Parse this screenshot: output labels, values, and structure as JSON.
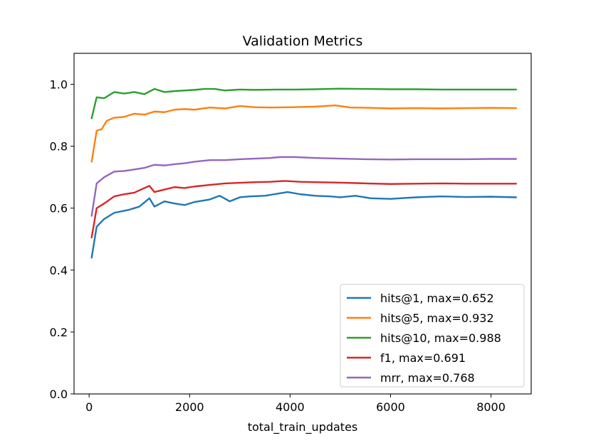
{
  "chart_data": {
    "type": "line",
    "title": "Validation Metrics",
    "xlabel": "total_train_updates",
    "ylabel": "",
    "xlim": [
      -300,
      8800
    ],
    "ylim": [
      0.0,
      1.1
    ],
    "xticks": [
      0,
      2000,
      4000,
      6000,
      8000
    ],
    "yticks": [
      0.0,
      0.2,
      0.4,
      0.6,
      0.8,
      1.0
    ],
    "xtick_labels": [
      "0",
      "2000",
      "4000",
      "6000",
      "8000"
    ],
    "ytick_labels": [
      "0.0",
      "0.2",
      "0.4",
      "0.6",
      "0.8",
      "1.0"
    ],
    "grid": false,
    "legend_position": "lower-right",
    "series": [
      {
        "name": "hits@1, max=0.652",
        "color": "#1f77b4",
        "x": [
          50,
          150,
          300,
          500,
          800,
          1000,
          1200,
          1300,
          1500,
          1700,
          1900,
          2100,
          2400,
          2600,
          2800,
          3000,
          3200,
          3500,
          3800,
          3950,
          4200,
          4500,
          4800,
          5000,
          5300,
          5600,
          6000,
          6500,
          7000,
          7500,
          8000,
          8500
        ],
        "y": [
          0.44,
          0.54,
          0.565,
          0.585,
          0.595,
          0.605,
          0.632,
          0.605,
          0.622,
          0.615,
          0.61,
          0.62,
          0.628,
          0.64,
          0.622,
          0.635,
          0.638,
          0.64,
          0.648,
          0.652,
          0.645,
          0.64,
          0.638,
          0.635,
          0.64,
          0.632,
          0.63,
          0.635,
          0.638,
          0.636,
          0.637,
          0.635
        ]
      },
      {
        "name": "hits@5, max=0.932",
        "color": "#ff7f0e",
        "x": [
          50,
          150,
          250,
          350,
          500,
          700,
          900,
          1100,
          1300,
          1500,
          1700,
          1900,
          2100,
          2400,
          2700,
          3000,
          3300,
          3600,
          4000,
          4500,
          4900,
          5200,
          5600,
          6000,
          6500,
          7000,
          7500,
          8000,
          8500
        ],
        "y": [
          0.75,
          0.85,
          0.855,
          0.882,
          0.892,
          0.895,
          0.905,
          0.902,
          0.912,
          0.91,
          0.918,
          0.92,
          0.918,
          0.925,
          0.922,
          0.93,
          0.926,
          0.925,
          0.926,
          0.928,
          0.932,
          0.925,
          0.924,
          0.922,
          0.923,
          0.922,
          0.923,
          0.924,
          0.923
        ]
      },
      {
        "name": "hits@10, max=0.988",
        "color": "#2ca02c",
        "x": [
          50,
          150,
          300,
          500,
          700,
          900,
          1100,
          1300,
          1500,
          1700,
          1900,
          2100,
          2300,
          2500,
          2700,
          3000,
          3300,
          3700,
          4100,
          4500,
          5000,
          5500,
          6000,
          6500,
          7000,
          7500,
          8000,
          8500
        ],
        "y": [
          0.89,
          0.958,
          0.955,
          0.975,
          0.97,
          0.975,
          0.968,
          0.985,
          0.975,
          0.978,
          0.98,
          0.982,
          0.985,
          0.985,
          0.98,
          0.983,
          0.982,
          0.983,
          0.983,
          0.984,
          0.986,
          0.985,
          0.984,
          0.984,
          0.983,
          0.983,
          0.983,
          0.983
        ]
      },
      {
        "name": "f1, max=0.691",
        "color": "#d62728",
        "x": [
          50,
          150,
          300,
          500,
          700,
          900,
          1100,
          1200,
          1300,
          1500,
          1700,
          1900,
          2100,
          2400,
          2700,
          3000,
          3300,
          3600,
          3900,
          4200,
          4500,
          4800,
          5100,
          5500,
          6000,
          6500,
          7000,
          7500,
          8000,
          8500
        ],
        "y": [
          0.505,
          0.6,
          0.615,
          0.638,
          0.645,
          0.65,
          0.665,
          0.672,
          0.652,
          0.66,
          0.668,
          0.665,
          0.67,
          0.675,
          0.68,
          0.682,
          0.684,
          0.685,
          0.688,
          0.685,
          0.684,
          0.683,
          0.682,
          0.68,
          0.678,
          0.679,
          0.68,
          0.679,
          0.679,
          0.679
        ]
      },
      {
        "name": "mrr, max=0.768",
        "color": "#9467bd",
        "x": [
          50,
          150,
          300,
          500,
          700,
          900,
          1100,
          1300,
          1500,
          1700,
          1900,
          2100,
          2400,
          2700,
          3000,
          3300,
          3600,
          3800,
          4100,
          4500,
          5000,
          5500,
          6000,
          6500,
          7000,
          7500,
          8000,
          8500
        ],
        "y": [
          0.575,
          0.68,
          0.7,
          0.718,
          0.72,
          0.725,
          0.73,
          0.74,
          0.738,
          0.742,
          0.745,
          0.75,
          0.755,
          0.755,
          0.758,
          0.76,
          0.762,
          0.765,
          0.765,
          0.762,
          0.76,
          0.758,
          0.757,
          0.758,
          0.758,
          0.758,
          0.759,
          0.759
        ]
      }
    ]
  }
}
